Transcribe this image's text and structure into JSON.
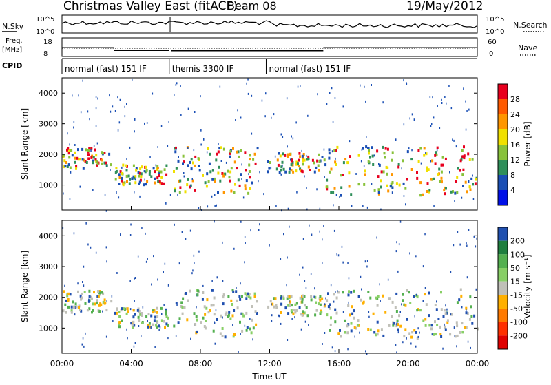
{
  "header": {
    "title": "Christmas Valley East (fitACF)",
    "beam": "Beam 08",
    "date": "19/May/2012"
  },
  "chart_data": [
    {
      "type": "line",
      "panel": "noise",
      "left_label": "N.Sky",
      "right_label": "N.Search",
      "left_ticks": [
        "10^5",
        "10^0"
      ],
      "right_ticks": [
        "10^5",
        "10^0"
      ]
    },
    {
      "type": "line",
      "panel": "frequency",
      "left_label_lines": [
        "Freq.",
        "[MHz]"
      ],
      "right_label": "Nave",
      "left_ticks": [
        "18",
        "8"
      ],
      "right_ticks": [
        "60",
        "0"
      ],
      "frequency_steps": [
        {
          "start_hour": 0,
          "end_hour": 3.0,
          "mhz": 12.5
        },
        {
          "start_hour": 3.0,
          "end_hour": 6.2,
          "mhz": 11.0
        },
        {
          "start_hour": 6.3,
          "end_hour": 15.1,
          "mhz": 10.8
        },
        {
          "start_hour": 15.1,
          "end_hour": 24.0,
          "mhz": 12.5
        }
      ]
    },
    {
      "type": "table",
      "panel": "cpid",
      "label": "CPID",
      "segments": [
        {
          "start_hour": 0,
          "end_hour": 6.2,
          "text": "normal (fast) 151 IF"
        },
        {
          "start_hour": 6.2,
          "end_hour": 11.8,
          "text": "themis 3300 IF"
        },
        {
          "start_hour": 11.8,
          "end_hour": 24,
          "text": "normal (fast) 151 IF"
        }
      ]
    },
    {
      "type": "heatmap",
      "panel": "power",
      "ylabel": "Slant Range [km]",
      "ylim": [
        180,
        4500
      ],
      "yticks": [
        1000,
        2000,
        3000,
        4000
      ],
      "colorbar": {
        "label": "Power [dB]",
        "tick_labels": [
          "28",
          "24",
          "20",
          "16",
          "12",
          "8",
          "4"
        ],
        "colors_top_to_bottom": [
          "#e8001e",
          "#ff5a00",
          "#ff9600",
          "#f0e000",
          "#88c23a",
          "#2f8f5a",
          "#1a4fb5",
          "#0010e8"
        ]
      },
      "bands": [
        {
          "t0": 0.0,
          "t1": 2.8,
          "r0": 1550,
          "r1": 2250,
          "fill": 0.8
        },
        {
          "t0": 3.0,
          "t1": 6.1,
          "r0": 1050,
          "r1": 1700,
          "fill": 0.8
        },
        {
          "t0": 6.4,
          "t1": 11.3,
          "r0": 750,
          "r1": 2300,
          "fill": 0.7
        },
        {
          "t0": 11.8,
          "t1": 15.0,
          "r0": 1450,
          "r1": 2100,
          "fill": 0.7
        },
        {
          "t0": 15.1,
          "t1": 24.0,
          "r0": 700,
          "r1": 2300,
          "fill": 0.6
        }
      ]
    },
    {
      "type": "heatmap",
      "panel": "velocity",
      "ylabel": "Slant Range [km]",
      "xlabel": "Time UT",
      "ylim": [
        180,
        4500
      ],
      "yticks": [
        1000,
        2000,
        3000,
        4000
      ],
      "xticks": [
        "00:00",
        "04:00",
        "08:00",
        "12:00",
        "16:00",
        "20:00",
        "00:00"
      ],
      "x_hours": [
        0,
        4,
        8,
        12,
        16,
        20,
        24
      ],
      "colorbar": {
        "label": "Velocity [m s⁻¹]",
        "tick_labels": [
          "200",
          "100",
          "50",
          "15",
          "-15",
          "-50",
          "-100",
          "-200"
        ],
        "colors_top_to_bottom": [
          "#2050b0",
          "#1f7f3f",
          "#54b050",
          "#88cf66",
          "#c0c0b8",
          "#ffb000",
          "#ff7a00",
          "#ff3000",
          "#e00000"
        ]
      },
      "bands": [
        {
          "t0": 0.0,
          "t1": 2.8,
          "r0": 1550,
          "r1": 2250,
          "fill": 0.8
        },
        {
          "t0": 3.0,
          "t1": 6.1,
          "r0": 1050,
          "r1": 1700,
          "fill": 0.8
        },
        {
          "t0": 6.4,
          "t1": 11.3,
          "r0": 750,
          "r1": 2300,
          "fill": 0.7
        },
        {
          "t0": 11.8,
          "t1": 15.0,
          "r0": 1450,
          "r1": 2100,
          "fill": 0.7
        },
        {
          "t0": 15.1,
          "t1": 24.0,
          "r0": 700,
          "r1": 2300,
          "fill": 0.6
        }
      ]
    }
  ]
}
